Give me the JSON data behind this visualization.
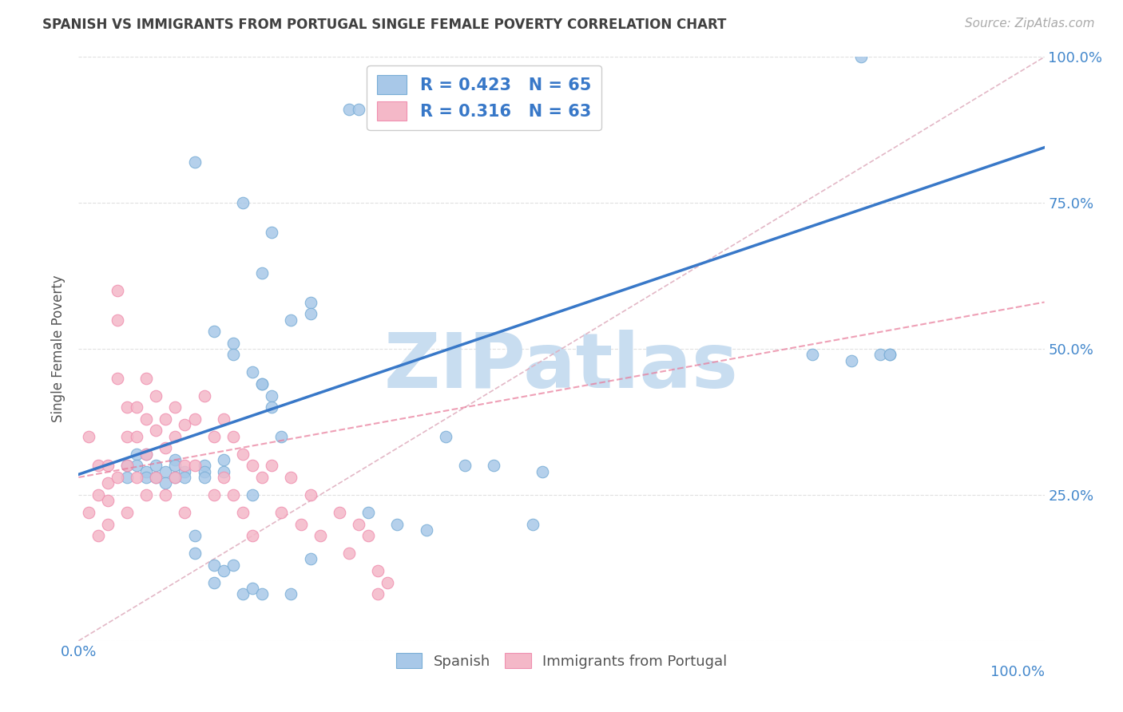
{
  "title": "SPANISH VS IMMIGRANTS FROM PORTUGAL SINGLE FEMALE POVERTY CORRELATION CHART",
  "source": "Source: ZipAtlas.com",
  "ylabel": "Single Female Poverty",
  "watermark": "ZIPatlas",
  "legend_blue_r": "R = 0.423",
  "legend_blue_n": "N = 65",
  "legend_pink_r": "R = 0.316",
  "legend_pink_n": "N = 63",
  "blue_color": "#a8c8e8",
  "pink_color": "#f4b8c8",
  "blue_scatter_edge": "#7aaed6",
  "pink_scatter_edge": "#f090b0",
  "blue_line_color": "#3878c8",
  "pink_line_color": "#e87898",
  "diag_line_color": "#e0b0c0",
  "title_color": "#404040",
  "axis_label_color": "#4488cc",
  "watermark_color": "#c8ddf0",
  "background_color": "#ffffff",
  "grid_color": "#dddddd",
  "blue_scatter_x": [
    0.28,
    0.29,
    0.12,
    0.17,
    0.2,
    0.19,
    0.24,
    0.24,
    0.14,
    0.16,
    0.16,
    0.18,
    0.19,
    0.19,
    0.2,
    0.2,
    0.22,
    0.05,
    0.05,
    0.06,
    0.06,
    0.07,
    0.07,
    0.07,
    0.08,
    0.08,
    0.09,
    0.09,
    0.1,
    0.1,
    0.1,
    0.11,
    0.11,
    0.12,
    0.12,
    0.13,
    0.13,
    0.13,
    0.14,
    0.14,
    0.15,
    0.15,
    0.15,
    0.16,
    0.17,
    0.18,
    0.18,
    0.19,
    0.21,
    0.22,
    0.24,
    0.3,
    0.33,
    0.36,
    0.38,
    0.4,
    0.43,
    0.47,
    0.48,
    0.76,
    0.8,
    0.81,
    0.83,
    0.84,
    0.84
  ],
  "blue_scatter_y": [
    0.91,
    0.91,
    0.82,
    0.75,
    0.7,
    0.63,
    0.58,
    0.56,
    0.53,
    0.51,
    0.49,
    0.46,
    0.44,
    0.44,
    0.42,
    0.4,
    0.55,
    0.3,
    0.28,
    0.32,
    0.3,
    0.32,
    0.29,
    0.28,
    0.3,
    0.28,
    0.29,
    0.27,
    0.31,
    0.3,
    0.28,
    0.29,
    0.28,
    0.15,
    0.18,
    0.3,
    0.29,
    0.28,
    0.1,
    0.13,
    0.31,
    0.29,
    0.12,
    0.13,
    0.08,
    0.25,
    0.09,
    0.08,
    0.35,
    0.08,
    0.14,
    0.22,
    0.2,
    0.19,
    0.35,
    0.3,
    0.3,
    0.2,
    0.29,
    0.49,
    0.48,
    1.0,
    0.49,
    0.49,
    0.49
  ],
  "pink_scatter_x": [
    0.01,
    0.01,
    0.02,
    0.02,
    0.02,
    0.03,
    0.03,
    0.03,
    0.03,
    0.04,
    0.04,
    0.04,
    0.04,
    0.05,
    0.05,
    0.05,
    0.05,
    0.06,
    0.06,
    0.06,
    0.07,
    0.07,
    0.07,
    0.07,
    0.08,
    0.08,
    0.08,
    0.09,
    0.09,
    0.09,
    0.1,
    0.1,
    0.1,
    0.11,
    0.11,
    0.11,
    0.12,
    0.12,
    0.13,
    0.14,
    0.14,
    0.15,
    0.15,
    0.16,
    0.16,
    0.17,
    0.17,
    0.18,
    0.18,
    0.19,
    0.2,
    0.21,
    0.22,
    0.23,
    0.24,
    0.25,
    0.27,
    0.28,
    0.29,
    0.3,
    0.31,
    0.31,
    0.32
  ],
  "pink_scatter_y": [
    0.35,
    0.22,
    0.3,
    0.25,
    0.18,
    0.3,
    0.27,
    0.24,
    0.2,
    0.6,
    0.55,
    0.45,
    0.28,
    0.4,
    0.35,
    0.3,
    0.22,
    0.4,
    0.35,
    0.28,
    0.45,
    0.38,
    0.32,
    0.25,
    0.42,
    0.36,
    0.28,
    0.38,
    0.33,
    0.25,
    0.4,
    0.35,
    0.28,
    0.37,
    0.3,
    0.22,
    0.38,
    0.3,
    0.42,
    0.35,
    0.25,
    0.38,
    0.28,
    0.35,
    0.25,
    0.32,
    0.22,
    0.3,
    0.18,
    0.28,
    0.3,
    0.22,
    0.28,
    0.2,
    0.25,
    0.18,
    0.22,
    0.15,
    0.2,
    0.18,
    0.12,
    0.08,
    0.1
  ],
  "xlim": [
    0.0,
    1.0
  ],
  "ylim": [
    0.0,
    1.0
  ],
  "xticks": [
    0.0,
    0.25,
    0.5,
    0.75,
    1.0
  ],
  "yticks": [
    0.0,
    0.25,
    0.5,
    0.75,
    1.0
  ],
  "ytick_labels_right": [
    "",
    "25.0%",
    "50.0%",
    "75.0%",
    "100.0%"
  ],
  "blue_slope": 0.56,
  "blue_intercept": 0.285,
  "pink_slope": 0.3,
  "pink_intercept": 0.28,
  "legend_label_color": "#3878c8"
}
